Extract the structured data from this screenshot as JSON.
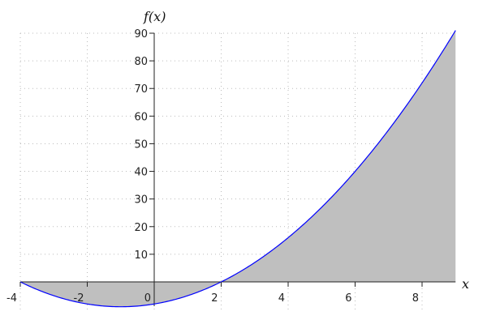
{
  "chart_data": {
    "type": "area",
    "function": "x^2 + 2x - 8",
    "xlabel": "x",
    "ylabel": "f(x)",
    "xlim": [
      -4,
      9
    ],
    "ylim": [
      -9,
      90
    ],
    "x_ticks": [
      -4,
      -2,
      0,
      2,
      4,
      6,
      8
    ],
    "x_tick_labels": [
      "-4",
      "-2",
      "0",
      "2",
      "4",
      "6",
      "8"
    ],
    "y_ticks": [
      10,
      20,
      30,
      40,
      50,
      60,
      70,
      80,
      90
    ],
    "y_tick_labels": [
      "10",
      "20",
      "30",
      "40",
      "50",
      "60",
      "70",
      "80",
      "90"
    ],
    "grid": true,
    "fill_to": 0,
    "series": [
      {
        "x_range": [
          -4,
          9
        ],
        "line_color": "#0000ff",
        "fill_color": "#bfbfbf"
      }
    ],
    "points": [
      [
        -4,
        0
      ],
      [
        -3,
        -5
      ],
      [
        -2,
        -8
      ],
      [
        -1,
        -9
      ],
      [
        0,
        -8
      ],
      [
        1,
        -5
      ],
      [
        2,
        0
      ],
      [
        3,
        7
      ],
      [
        4,
        16
      ],
      [
        5,
        27
      ],
      [
        6,
        40
      ],
      [
        7,
        55
      ],
      [
        8,
        72
      ],
      [
        9,
        91
      ]
    ]
  }
}
